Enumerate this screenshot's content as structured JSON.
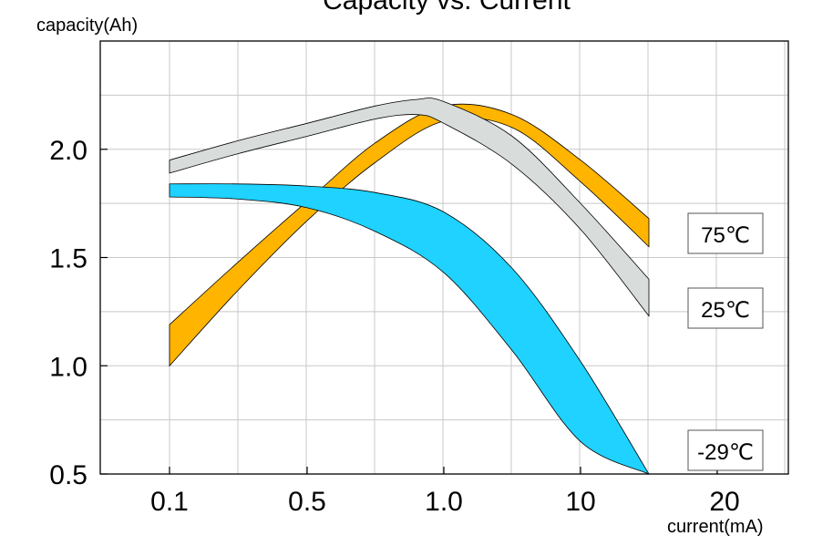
{
  "chart_data": {
    "type": "area",
    "title": "Capacity vs. Current",
    "ylabel": "capacity(Ah)",
    "xlabel": "current(mA)",
    "x_categories": [
      "0.1",
      "0.5",
      "1.0",
      "10",
      "20"
    ],
    "yticks": [
      "0.5",
      "1.0",
      "1.5",
      "2.0"
    ],
    "ylim": [
      0.5,
      2.5
    ],
    "grid": true,
    "series": [
      {
        "name": "75℃",
        "color": "#FFB400",
        "x": [
          0.0,
          0.5,
          1.0,
          1.5,
          2.0,
          2.5,
          3.0,
          3.5
        ],
        "upper": [
          1.19,
          1.48,
          1.76,
          2.03,
          2.2,
          2.16,
          1.95,
          1.68
        ],
        "lower": [
          1.0,
          1.35,
          1.67,
          1.94,
          2.13,
          2.1,
          1.85,
          1.55
        ]
      },
      {
        "name": "25℃",
        "color": "#D8DDDC",
        "x": [
          0.0,
          0.5,
          1.0,
          1.5,
          1.8,
          2.0,
          2.5,
          3.0,
          3.5
        ],
        "upper": [
          1.95,
          2.04,
          2.12,
          2.2,
          2.23,
          2.22,
          2.06,
          1.75,
          1.4
        ],
        "lower": [
          1.89,
          1.98,
          2.06,
          2.14,
          2.16,
          2.12,
          1.93,
          1.63,
          1.23
        ]
      },
      {
        "name": "-29℃",
        "color": "#1FD2FF",
        "x": [
          0.0,
          0.5,
          1.0,
          1.5,
          2.0,
          2.5,
          3.0,
          3.5
        ],
        "upper": [
          1.84,
          1.84,
          1.83,
          1.8,
          1.71,
          1.45,
          1.02,
          0.5
        ],
        "lower": [
          1.78,
          1.77,
          1.73,
          1.62,
          1.43,
          1.07,
          0.65,
          0.5
        ]
      }
    ]
  }
}
